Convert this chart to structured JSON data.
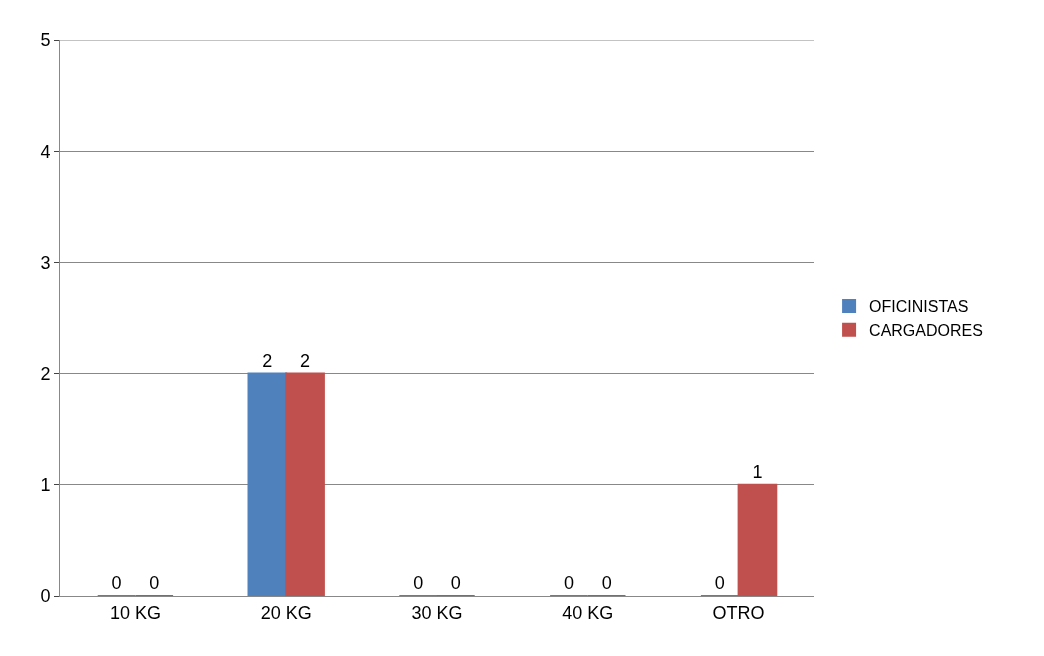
{
  "chart_data": {
    "type": "bar",
    "categories": [
      "10 KG",
      "20 KG",
      "30 KG",
      "40 KG",
      "OTRO"
    ],
    "series": [
      {
        "name": "OFICINISTAS",
        "color": "#4f81bd",
        "values": [
          0,
          2,
          0,
          0,
          0
        ]
      },
      {
        "name": "CARGADORES",
        "color": "#c0504d",
        "values": [
          0,
          2,
          0,
          0,
          1
        ]
      }
    ],
    "ylim": [
      0,
      5
    ],
    "yticks": [
      0,
      1,
      2,
      3,
      4,
      5
    ],
    "grid": "y",
    "legend": "right",
    "data_labels": true
  }
}
